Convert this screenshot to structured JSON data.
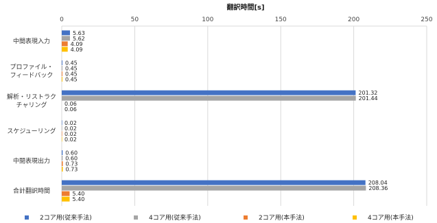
{
  "chart_data": {
    "type": "bar",
    "orientation": "horizontal",
    "title": "翻訳時間[s]",
    "xlim": [
      0,
      250
    ],
    "x_ticks": [
      0,
      50,
      100,
      150,
      200,
      250
    ],
    "x_axis_position": "top",
    "grid": true,
    "legend_position": "bottom",
    "categories": [
      "中間表現入力",
      "プロファイル・\nフィードバック",
      "解析・リストラク\nチャリング",
      "スケジューリング",
      "中間表現出力",
      "合計翻訳時間"
    ],
    "series": [
      {
        "name": "2コア用(従来手法)",
        "color": "#4472C4",
        "values": [
          5.63,
          0.45,
          201.32,
          0.02,
          0.6,
          208.04
        ]
      },
      {
        "name": "4コア用(従来手法)",
        "color": "#A5A5A5",
        "values": [
          5.62,
          0.45,
          201.44,
          0.02,
          0.6,
          208.36
        ]
      },
      {
        "name": "2コア用(本手法)",
        "color": "#ED7D31",
        "values": [
          4.09,
          0.45,
          null,
          0.02,
          0.73,
          5.4
        ]
      },
      {
        "name": "4コア用(本手法)",
        "color": "#FFC000",
        "values": [
          4.09,
          0.45,
          null,
          0.02,
          0.73,
          5.4
        ]
      }
    ],
    "data_labels": [
      [
        "5.63",
        "5.62",
        "4.09",
        "4.09"
      ],
      [
        "0.45",
        "0.45",
        "0.45",
        "0.45"
      ],
      [
        "201.32",
        "201.44",
        "0.06",
        "0.06"
      ],
      [
        "0.02",
        "0.02",
        "0.02",
        "0.02"
      ],
      [
        "0.60",
        "0.60",
        "0.73",
        "0.73"
      ],
      [
        "208.04",
        "208.36",
        "5.40",
        "5.40"
      ]
    ]
  }
}
